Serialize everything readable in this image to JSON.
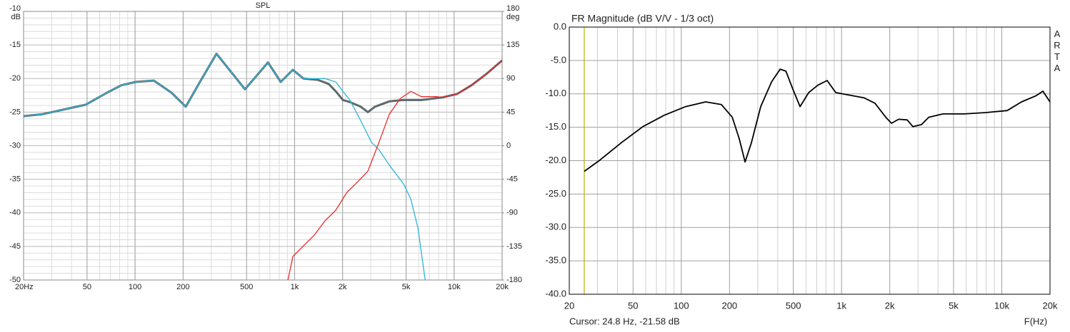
{
  "chart_data": [
    {
      "type": "line",
      "title": "SPL",
      "xscale": "log",
      "xlim": [
        20,
        20000
      ],
      "ylim": [
        -50,
        -10
      ],
      "y_unit": "dB",
      "yticks": [
        -10,
        -15,
        -20,
        -25,
        -30,
        -35,
        -40,
        -45,
        -50
      ],
      "yminor": [
        -11,
        -12,
        -13,
        -14,
        -16,
        -17,
        -18,
        -19,
        -21,
        -22,
        -23,
        -24,
        -26,
        -27,
        -28,
        -29,
        -31,
        -32,
        -33,
        -34,
        -36,
        -37,
        -38,
        -39,
        -41,
        -42,
        -43,
        -44,
        -46,
        -47,
        -48,
        -49
      ],
      "y2lim": [
        -180,
        180
      ],
      "y2_unit": "deg",
      "y2ticks": [
        180,
        135,
        90,
        45,
        0,
        -45,
        -90,
        -135,
        -180
      ],
      "xticks": [
        {
          "value": 20,
          "label": "20Hz"
        },
        50,
        100,
        200,
        500,
        {
          "value": 1000,
          "label": "1k"
        },
        {
          "value": 2000,
          "label": "2k"
        },
        {
          "value": 5000,
          "label": "5k"
        },
        {
          "value": 10000,
          "label": "10k"
        },
        {
          "value": 20000,
          "label": "20k"
        }
      ],
      "xminor": [
        30,
        40,
        60,
        70,
        80,
        90,
        300,
        400,
        600,
        700,
        800,
        900,
        3000,
        4000,
        6000,
        7000,
        8000,
        9000
      ],
      "series": [
        {
          "color": "#5e6a6e",
          "line_width": 3,
          "x": [
            20,
            26.4,
            49,
            66.8,
            82,
            101,
            131,
            169,
            208,
            255,
            324,
            489,
            681,
            818,
            975,
            1138,
            1400,
            1634,
            1812,
            2009,
            2221,
            2600,
            2878,
            3190,
            3926,
            4820,
            6240,
            8510,
            10450,
            12850,
            15780,
            20000
          ],
          "values": [
            -25.6,
            -25.3,
            -23.9,
            -22.1,
            -21,
            -20.5,
            -20.3,
            -22.1,
            -24.2,
            -20.5,
            -16.3,
            -21.6,
            -17.6,
            -20.5,
            -18.7,
            -20,
            -20.2,
            -20.8,
            -21.9,
            -23.2,
            -23.5,
            -24.2,
            -25,
            -24.2,
            -23.4,
            -23.2,
            -23.2,
            -22.8,
            -22.3,
            -21,
            -19.4,
            -17.3
          ]
        },
        {
          "color": "#2ab6d8",
          "line_width": 1.3,
          "x": [
            20,
            26.4,
            49,
            66.8,
            82,
            101,
            131,
            169,
            208,
            255,
            324,
            489,
            681,
            818,
            975,
            1138,
            1550,
            1812,
            2009,
            2221,
            2600,
            3033,
            3380,
            3926,
            4820,
            5360,
            5940,
            6580
          ],
          "values": [
            -25.6,
            -25.3,
            -23.9,
            -22.1,
            -21,
            -20.5,
            -20.3,
            -22.1,
            -24.2,
            -20.5,
            -16.3,
            -21.6,
            -17.6,
            -20.5,
            -18.7,
            -20,
            -20,
            -20.5,
            -21.9,
            -23.2,
            -26.3,
            -29.5,
            -30.6,
            -32.9,
            -35.7,
            -38,
            -42.3,
            -50
          ]
        },
        {
          "color": "#e82a2a",
          "line_width": 1.3,
          "x": [
            908,
            975,
            1138,
            1330,
            1550,
            1812,
            2120,
            2480,
            2878,
            3380,
            3926,
            4590,
            5360,
            6240,
            7730,
            8510,
            10450,
            12850,
            15780,
            20000
          ],
          "values": [
            -50,
            -46.5,
            -44.9,
            -43.3,
            -41.2,
            -39.6,
            -37,
            -35.4,
            -33.8,
            -29.5,
            -25.3,
            -23,
            -21.9,
            -22.7,
            -22.7,
            -22.8,
            -22.3,
            -21,
            -19.4,
            -17.3
          ]
        }
      ]
    },
    {
      "type": "line",
      "title": "FR Magnitude (dB V/V - 1/3 oct)",
      "xscale": "log",
      "xlim": [
        20,
        20000
      ],
      "ylim": [
        -40,
        0
      ],
      "yticks": [
        {
          "value": 0,
          "label": "0.0"
        },
        {
          "value": -5,
          "label": "-5.0"
        },
        {
          "value": -10,
          "label": "-10.0"
        },
        {
          "value": -15,
          "label": "-15.0"
        },
        {
          "value": -20,
          "label": "-20.0"
        },
        {
          "value": -25,
          "label": "-25.0"
        },
        {
          "value": -30,
          "label": "-30.0"
        },
        {
          "value": -35,
          "label": "-35.0"
        },
        {
          "value": -40,
          "label": "-40.0"
        }
      ],
      "xticks": [
        20,
        50,
        100,
        200,
        500,
        {
          "value": 1000,
          "label": "1k"
        },
        {
          "value": 2000,
          "label": "2k"
        },
        {
          "value": 5000,
          "label": "5k"
        },
        {
          "value": 10000,
          "label": "10k"
        },
        {
          "value": 20000,
          "label": "20k"
        }
      ],
      "xminor": [
        30,
        40,
        60,
        70,
        80,
        90,
        300,
        400,
        600,
        700,
        800,
        900,
        3000,
        4000,
        6000,
        7000,
        8000,
        9000
      ],
      "x_label": "F(Hz)",
      "side_label": "ARTA",
      "cursor_label": "Cursor: 24.8 Hz, -21.58 dB",
      "cursor_x": 24.8,
      "cursor_color": "#b5b500",
      "series": [
        {
          "color": "#000000",
          "line_width": 1.8,
          "x": [
            24.8,
            31.1,
            42.3,
            57.6,
            78.4,
            106.6,
            142,
            178,
            208,
            230,
            250,
            274,
            313,
            366,
            414,
            450,
            497,
            551,
            624,
            712,
            813,
            920,
            1074,
            1387,
            1618,
            1888,
            2050,
            2272,
            2570,
            2788,
            3156,
            3500,
            4295,
            5840,
            7950,
            10810,
            13280,
            16300,
            18070,
            20000
          ],
          "values": [
            -21.6,
            -19.9,
            -17.3,
            -14.9,
            -13.2,
            -11.9,
            -11.2,
            -11.6,
            -13.5,
            -16.7,
            -20.2,
            -17.3,
            -11.9,
            -8.2,
            -6.3,
            -6.6,
            -9.3,
            -11.9,
            -9.8,
            -8.7,
            -8.0,
            -9.8,
            -10.1,
            -10.6,
            -11.4,
            -13.5,
            -14.4,
            -13.8,
            -13.9,
            -14.9,
            -14.6,
            -13.5,
            -13.0,
            -13.0,
            -12.8,
            -12.5,
            -11.2,
            -10.3,
            -9.6,
            -11.2
          ]
        }
      ]
    }
  ]
}
